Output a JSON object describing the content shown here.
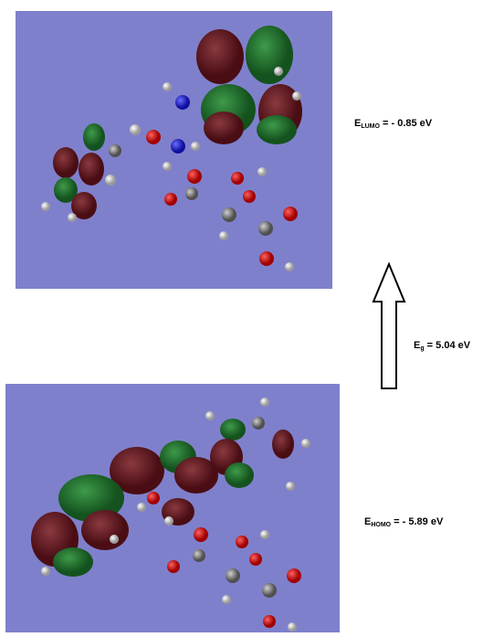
{
  "labels": {
    "lumo": {
      "symbol": "E",
      "subscript": "LUMO",
      "text": " = - 0.85 eV"
    },
    "gap": {
      "symbol": "E",
      "subscript": "g",
      "text": " = 5.04 eV"
    },
    "homo": {
      "symbol": "E",
      "subscript": "HOMO",
      "text": " = - 5.89 eV"
    }
  }
}
